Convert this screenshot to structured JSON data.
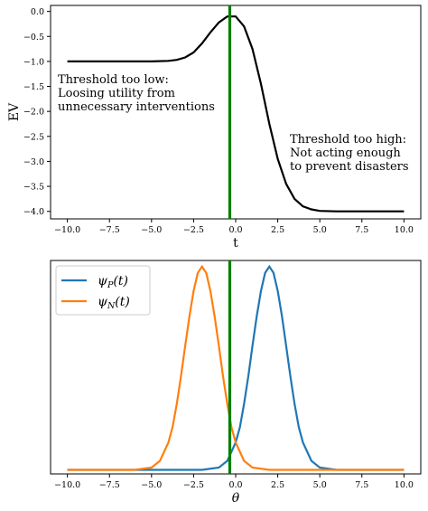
{
  "chart_data": [
    {
      "type": "line",
      "xlabel": "t",
      "ylabel": "EV",
      "xlim": [
        -11,
        11
      ],
      "ylim": [
        -4.15,
        0.12
      ],
      "xticks": [
        "−10.0",
        "−7.5",
        "−5.0",
        "−2.5",
        "0.0",
        "2.5",
        "5.0",
        "7.5",
        "10.0"
      ],
      "xtick_values": [
        -10,
        -7.5,
        -5,
        -2.5,
        0,
        2.5,
        5,
        7.5,
        10
      ],
      "yticks": [
        "0.0",
        "−0.5",
        "−1.0",
        "−1.5",
        "−2.0",
        "−2.5",
        "−3.0",
        "−3.5",
        "−4.0"
      ],
      "ytick_values": [
        0,
        -0.5,
        -1,
        -1.5,
        -2,
        -2.5,
        -3,
        -3.5,
        -4
      ],
      "grid": false,
      "series": [
        {
          "color": "#000000",
          "x": [
            -10,
            -9,
            -8,
            -7,
            -6,
            -5,
            -4,
            -3.5,
            -3,
            -2.5,
            -2,
            -1.5,
            -1,
            -0.5,
            0,
            0.5,
            1,
            1.5,
            2,
            2.5,
            3,
            3.5,
            4,
            4.5,
            5,
            6,
            7,
            8,
            9,
            10
          ],
          "values": [
            -1.0,
            -1.0,
            -1.0,
            -1.0,
            -1.0,
            -1.0,
            -0.99,
            -0.97,
            -0.92,
            -0.82,
            -0.64,
            -0.42,
            -0.22,
            -0.1,
            -0.1,
            -0.3,
            -0.75,
            -1.45,
            -2.25,
            -2.95,
            -3.45,
            -3.75,
            -3.9,
            -3.96,
            -3.99,
            -4.0,
            -4.0,
            -4.0,
            -4.0,
            -4.0
          ]
        }
      ],
      "vline": {
        "x": -0.35,
        "color": "#008000"
      },
      "annotations": [
        {
          "lines": [
            "Threshold too low:",
            "Loosing utility from",
            "unnecessary interventions"
          ]
        },
        {
          "lines": [
            "Threshold too high:",
            "Not acting enough",
            "to prevent disasters"
          ]
        }
      ]
    },
    {
      "type": "line",
      "xlabel": "θ",
      "xlim": [
        -11,
        11
      ],
      "ylim": [
        -0.02,
        1.03
      ],
      "xticks": [
        "−10.0",
        "−7.5",
        "−5.0",
        "−2.5",
        "0.0",
        "2.5",
        "5.0",
        "7.5",
        "10.0"
      ],
      "xtick_values": [
        -10,
        -7.5,
        -5,
        -2.5,
        0,
        2.5,
        5,
        7.5,
        10
      ],
      "yticks": [],
      "grid": false,
      "legend": "top-left",
      "series": [
        {
          "name": "ψP(t)",
          "name_main": "ψ",
          "name_sub": "P",
          "name_tail": "(t)",
          "color": "#1f77b4",
          "x": [
            -10,
            -8,
            -6,
            -4,
            -2,
            -1,
            -0.5,
            0,
            0.25,
            0.5,
            0.75,
            1,
            1.25,
            1.5,
            1.75,
            2,
            2.25,
            2.5,
            2.75,
            3,
            3.25,
            3.5,
            3.75,
            4,
            4.5,
            5,
            6,
            8,
            10
          ],
          "values": [
            0,
            0,
            0,
            0,
            0,
            0.011,
            0.044,
            0.135,
            0.21,
            0.325,
            0.46,
            0.61,
            0.755,
            0.88,
            0.969,
            1.0,
            0.969,
            0.88,
            0.755,
            0.61,
            0.46,
            0.325,
            0.21,
            0.135,
            0.044,
            0.011,
            0,
            0,
            0
          ]
        },
        {
          "name": "ψN(t)",
          "name_main": "ψ",
          "name_sub": "N",
          "name_tail": "(t)",
          "color": "#ff7f0e",
          "x": [
            -10,
            -8,
            -6,
            -5,
            -4.5,
            -4,
            -3.75,
            -3.5,
            -3.25,
            -3,
            -2.75,
            -2.5,
            -2.25,
            -2,
            -1.75,
            -1.5,
            -1.25,
            -1,
            -0.75,
            -0.5,
            -0.25,
            0,
            0.5,
            1,
            2,
            4,
            6,
            8,
            10
          ],
          "values": [
            0,
            0,
            0,
            0.011,
            0.044,
            0.135,
            0.21,
            0.325,
            0.46,
            0.61,
            0.755,
            0.88,
            0.969,
            1.0,
            0.969,
            0.88,
            0.755,
            0.61,
            0.46,
            0.325,
            0.21,
            0.135,
            0.044,
            0.011,
            0,
            0,
            0,
            0,
            0
          ]
        }
      ],
      "vline": {
        "x": -0.35,
        "color": "#008000"
      }
    }
  ]
}
